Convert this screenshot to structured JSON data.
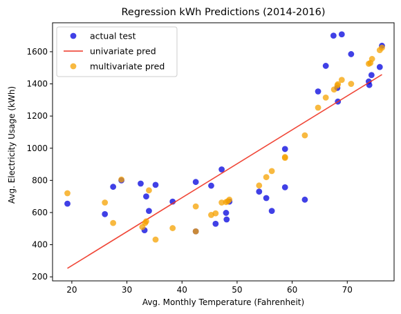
{
  "chart_data": {
    "type": "scatter",
    "title": "Regression kWh Predictions (2014-2016)",
    "xlabel": "Avg. Monthly Temperature (Fahrenheit)",
    "ylabel": "Avg. Electricity Usage (kWh)",
    "xlim": [
      16.5,
      78.5
    ],
    "ylim": [
      175,
      1780
    ],
    "xticks": [
      20,
      30,
      40,
      50,
      60,
      70
    ],
    "yticks": [
      200,
      400,
      600,
      800,
      1000,
      1200,
      1400,
      1600
    ],
    "grid": false,
    "legend_position": "top-left",
    "series": [
      {
        "name": "actual test",
        "kind": "scatter",
        "color": "#0000dd",
        "points": [
          [
            19.2,
            655
          ],
          [
            26,
            590
          ],
          [
            27.5,
            760
          ],
          [
            29,
            800
          ],
          [
            32.5,
            780
          ],
          [
            33.2,
            490
          ],
          [
            33.5,
            700
          ],
          [
            34,
            610
          ],
          [
            35.2,
            772
          ],
          [
            38.3,
            668
          ],
          [
            42.5,
            790
          ],
          [
            42.5,
            483
          ],
          [
            45.3,
            767
          ],
          [
            46.1,
            530
          ],
          [
            47.2,
            868
          ],
          [
            48,
            598
          ],
          [
            48.1,
            557
          ],
          [
            48.6,
            668
          ],
          [
            54,
            730
          ],
          [
            55.3,
            690
          ],
          [
            56.3,
            610
          ],
          [
            58.7,
            995
          ],
          [
            58.7,
            757
          ],
          [
            62.3,
            680
          ],
          [
            64.7,
            1353
          ],
          [
            66.1,
            1512
          ],
          [
            67.5,
            1700
          ],
          [
            68.2,
            1375
          ],
          [
            68.3,
            1290
          ],
          [
            69,
            1708
          ],
          [
            70.7,
            1585
          ],
          [
            73.9,
            1415
          ],
          [
            74,
            1393
          ],
          [
            74.4,
            1455
          ],
          [
            75.9,
            1505
          ],
          [
            76.3,
            1637
          ]
        ]
      },
      {
        "name": "univariate pred",
        "kind": "line",
        "color": "#ee3322",
        "points": [
          [
            19.2,
            253
          ],
          [
            76.3,
            1458
          ]
        ]
      },
      {
        "name": "multivariate pred",
        "kind": "scatter",
        "color": "#f5a100",
        "points": [
          [
            19.2,
            720
          ],
          [
            26,
            662
          ],
          [
            27.5,
            535
          ],
          [
            29,
            805
          ],
          [
            32.8,
            510
          ],
          [
            33.3,
            535
          ],
          [
            33.5,
            545
          ],
          [
            34,
            738
          ],
          [
            35.2,
            432
          ],
          [
            38.3,
            503
          ],
          [
            42.5,
            638
          ],
          [
            42.5,
            483
          ],
          [
            45.3,
            585
          ],
          [
            46.1,
            595
          ],
          [
            47.2,
            662
          ],
          [
            48,
            665
          ],
          [
            48.3,
            670
          ],
          [
            48.6,
            680
          ],
          [
            54,
            768
          ],
          [
            55.3,
            820
          ],
          [
            56.3,
            858
          ],
          [
            58.7,
            940
          ],
          [
            58.7,
            945
          ],
          [
            62.3,
            1080
          ],
          [
            64.7,
            1252
          ],
          [
            66.1,
            1315
          ],
          [
            67.6,
            1365
          ],
          [
            68.2,
            1390
          ],
          [
            68.3,
            1398
          ],
          [
            69,
            1425
          ],
          [
            70.7,
            1400
          ],
          [
            73.9,
            1525
          ],
          [
            74.2,
            1530
          ],
          [
            74.5,
            1555
          ],
          [
            75.9,
            1610
          ],
          [
            76.3,
            1625
          ]
        ]
      }
    ]
  }
}
